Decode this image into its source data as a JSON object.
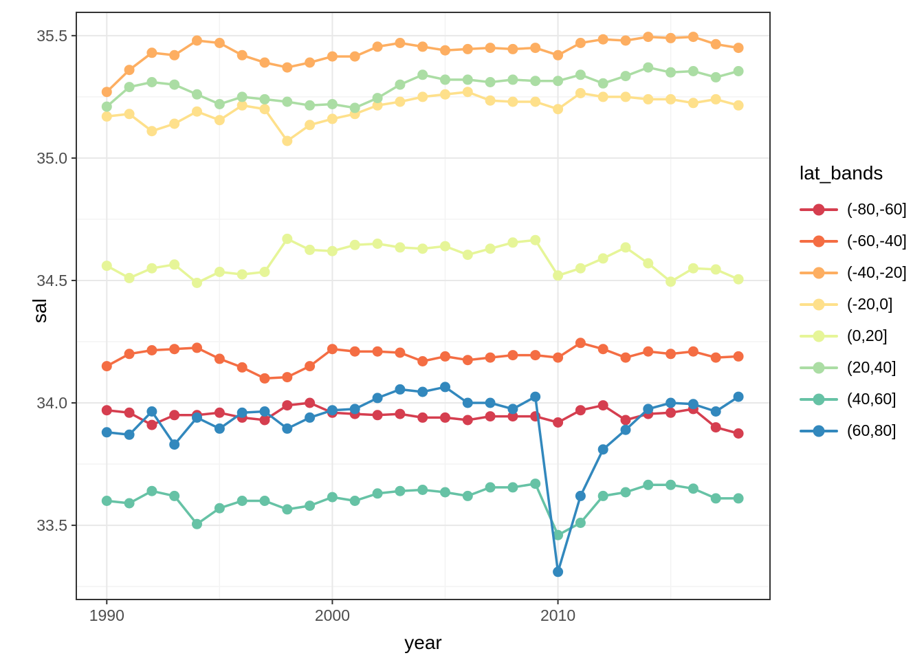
{
  "chart_data": {
    "type": "line",
    "title": "",
    "xlabel": "year",
    "ylabel": "sal",
    "legend_title": "lat_bands",
    "legend_position": "right",
    "grid": true,
    "xlim": [
      1988.65,
      2019.4
    ],
    "ylim": [
      33.197,
      35.595
    ],
    "x_major_ticks": [
      1990,
      2000,
      2010
    ],
    "x_major_tick_labels": [
      "1990",
      "2000",
      "2010"
    ],
    "x_minor_ticks": [
      1995,
      2005,
      2015
    ],
    "y_major_ticks": [
      33.5,
      34.0,
      34.5,
      35.0,
      35.5
    ],
    "y_major_tick_labels": [
      "33.5",
      "34.0",
      "34.5",
      "35.0",
      "35.5"
    ],
    "y_minor_ticks": [
      33.25,
      33.75,
      34.25,
      34.75,
      35.25
    ],
    "x": [
      1990,
      1991,
      1992,
      1993,
      1994,
      1995,
      1996,
      1997,
      1998,
      1999,
      2000,
      2001,
      2002,
      2003,
      2004,
      2005,
      2006,
      2007,
      2008,
      2009,
      2010,
      2011,
      2012,
      2013,
      2014,
      2015,
      2016,
      2017,
      2018
    ],
    "series": [
      {
        "name": "(-80,-60]",
        "color": "#d53e4f",
        "values": [
          33.97,
          33.96,
          33.91,
          33.95,
          33.95,
          33.96,
          33.94,
          33.93,
          33.99,
          34.0,
          33.96,
          33.955,
          33.95,
          33.955,
          33.94,
          33.94,
          33.93,
          33.945,
          33.945,
          33.945,
          33.92,
          33.97,
          33.99,
          33.93,
          33.955,
          33.96,
          33.975,
          33.9,
          33.875
        ]
      },
      {
        "name": "(-60,-40]",
        "color": "#f46d43",
        "values": [
          34.15,
          34.2,
          34.215,
          34.22,
          34.225,
          34.18,
          34.145,
          34.1,
          34.105,
          34.15,
          34.22,
          34.21,
          34.21,
          34.205,
          34.17,
          34.19,
          34.175,
          34.185,
          34.195,
          34.195,
          34.185,
          34.245,
          34.22,
          34.185,
          34.21,
          34.2,
          34.21,
          34.185,
          34.19
        ]
      },
      {
        "name": "(-40,-20]",
        "color": "#fdae61",
        "values": [
          35.27,
          35.36,
          35.43,
          35.42,
          35.48,
          35.47,
          35.42,
          35.39,
          35.37,
          35.39,
          35.415,
          35.415,
          35.455,
          35.47,
          35.455,
          35.44,
          35.445,
          35.45,
          35.445,
          35.45,
          35.42,
          35.47,
          35.485,
          35.48,
          35.495,
          35.49,
          35.495,
          35.465,
          35.45
        ]
      },
      {
        "name": "(-20,0]",
        "color": "#fee08b",
        "values": [
          35.17,
          35.18,
          35.11,
          35.14,
          35.19,
          35.155,
          35.215,
          35.2,
          35.07,
          35.135,
          35.16,
          35.18,
          35.215,
          35.23,
          35.25,
          35.26,
          35.27,
          35.235,
          35.23,
          35.23,
          35.2,
          35.265,
          35.25,
          35.25,
          35.24,
          35.24,
          35.225,
          35.24,
          35.215
        ]
      },
      {
        "name": "(0,20]",
        "color": "#e6f598",
        "values": [
          34.56,
          34.51,
          34.55,
          34.565,
          34.49,
          34.535,
          34.525,
          34.535,
          34.67,
          34.625,
          34.62,
          34.645,
          34.65,
          34.635,
          34.63,
          34.64,
          34.605,
          34.63,
          34.655,
          34.665,
          34.52,
          34.55,
          34.59,
          34.635,
          34.57,
          34.495,
          34.55,
          34.545,
          34.505
        ]
      },
      {
        "name": "(20,40]",
        "color": "#abdda4",
        "values": [
          35.21,
          35.29,
          35.31,
          35.3,
          35.26,
          35.22,
          35.25,
          35.24,
          35.23,
          35.215,
          35.22,
          35.205,
          35.245,
          35.3,
          35.34,
          35.32,
          35.32,
          35.31,
          35.32,
          35.315,
          35.315,
          35.34,
          35.305,
          35.335,
          35.37,
          35.35,
          35.355,
          35.33,
          35.355
        ]
      },
      {
        "name": "(40,60]",
        "color": "#66c2a5",
        "values": [
          33.6,
          33.59,
          33.64,
          33.62,
          33.505,
          33.57,
          33.6,
          33.6,
          33.565,
          33.58,
          33.615,
          33.6,
          33.63,
          33.64,
          33.645,
          33.635,
          33.62,
          33.655,
          33.655,
          33.67,
          33.46,
          33.51,
          33.62,
          33.635,
          33.665,
          33.665,
          33.65,
          33.61,
          33.61
        ]
      },
      {
        "name": "(60,80]",
        "color": "#3288bd",
        "values": [
          33.88,
          33.87,
          33.965,
          33.83,
          33.94,
          33.895,
          33.96,
          33.965,
          33.895,
          33.94,
          33.97,
          33.975,
          34.02,
          34.055,
          34.045,
          34.065,
          34.0,
          34.0,
          33.975,
          34.025,
          33.31,
          33.62,
          33.81,
          33.89,
          33.975,
          34.0,
          33.995,
          33.965,
          34.025
        ]
      }
    ],
    "style": {
      "background": "#ffffff",
      "panel_background": "#ffffff",
      "panel_border": "#333333",
      "grid_major": "#e8e8e8",
      "grid_minor": "#f3f3f3",
      "tick_color": "#333333",
      "tick_label_color": "#4d4d4d",
      "point_radius": 7.5,
      "line_width": 3.5
    }
  }
}
